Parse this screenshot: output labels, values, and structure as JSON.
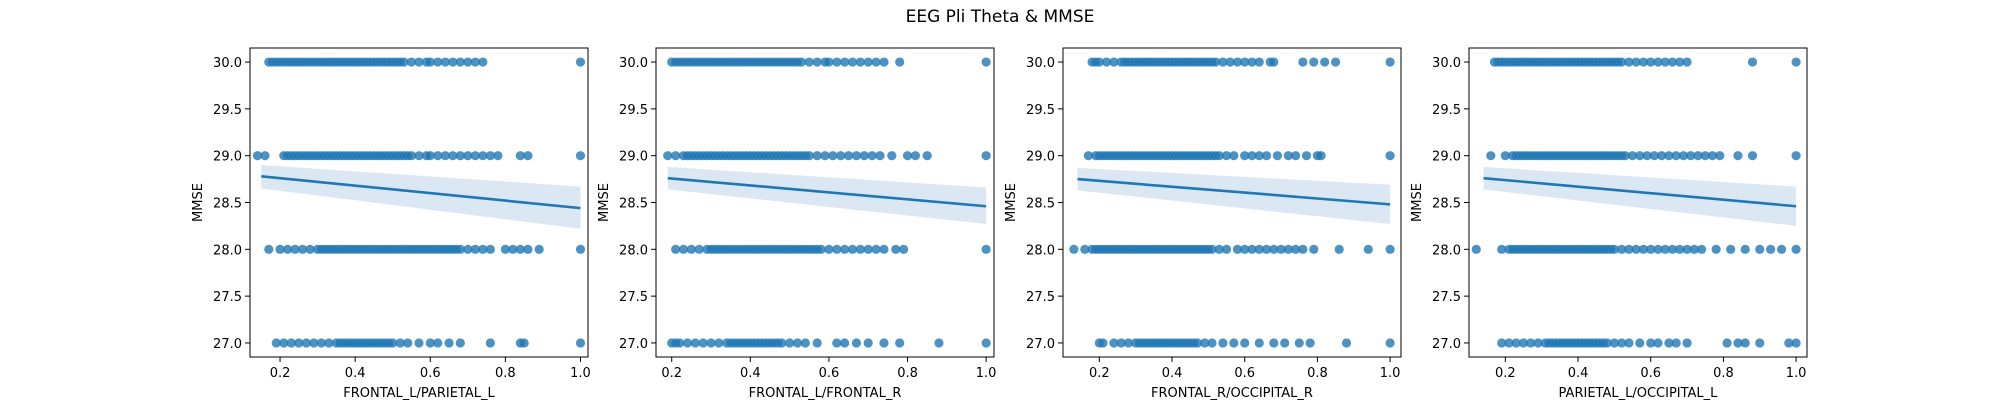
{
  "figure_title": "EEG Pli Theta & MMSE",
  "style": {
    "point_color": "#1f77b4",
    "line_color": "#1f77b4",
    "band_color": "#a6c5e2"
  },
  "chart_data": [
    {
      "type": "scatter",
      "title": "",
      "xlabel": "FRONTAL_L/PARIETAL_L",
      "ylabel": "MMSE",
      "xlim": [
        0.12,
        1.02
      ],
      "ylim": [
        26.85,
        30.15
      ],
      "xticks": [
        "0.2",
        "0.4",
        "0.6",
        "0.8",
        "1.0"
      ],
      "yticks": [
        "27.0",
        "27.5",
        "28.0",
        "28.5",
        "29.0",
        "29.5",
        "30.0"
      ],
      "grid": false,
      "regression": {
        "x": [
          0.15,
          1.0
        ],
        "y": [
          28.78,
          28.44
        ],
        "ci_low": [
          28.65,
          28.22
        ],
        "ci_high": [
          28.9,
          28.67
        ]
      },
      "points": [
        {
          "y": 30.0,
          "x": [
            0.17,
            0.18,
            0.19,
            0.2,
            0.21,
            0.22,
            0.23,
            0.24,
            0.25,
            0.26,
            0.27,
            0.28,
            0.29,
            0.3,
            0.31,
            0.32,
            0.33,
            0.34,
            0.35,
            0.36,
            0.37,
            0.38,
            0.39,
            0.4,
            0.41,
            0.42,
            0.43,
            0.44,
            0.45,
            0.46,
            0.47,
            0.48,
            0.49,
            0.5,
            0.51,
            0.52,
            0.53,
            0.55,
            0.57,
            0.59,
            0.6,
            0.62,
            0.64,
            0.66,
            0.68,
            0.7,
            0.72,
            0.74,
            1.0
          ]
        },
        {
          "y": 29.0,
          "x": [
            0.14,
            0.16,
            0.21,
            0.22,
            0.23,
            0.24,
            0.25,
            0.26,
            0.27,
            0.28,
            0.29,
            0.3,
            0.31,
            0.32,
            0.33,
            0.34,
            0.35,
            0.36,
            0.37,
            0.38,
            0.39,
            0.4,
            0.41,
            0.42,
            0.43,
            0.44,
            0.45,
            0.46,
            0.47,
            0.48,
            0.49,
            0.5,
            0.51,
            0.52,
            0.53,
            0.54,
            0.55,
            0.57,
            0.59,
            0.6,
            0.62,
            0.64,
            0.66,
            0.68,
            0.7,
            0.72,
            0.74,
            0.76,
            0.78,
            0.84,
            0.86,
            1.0
          ]
        },
        {
          "y": 28.0,
          "x": [
            0.17,
            0.2,
            0.22,
            0.24,
            0.26,
            0.28,
            0.3,
            0.31,
            0.32,
            0.33,
            0.34,
            0.35,
            0.36,
            0.37,
            0.38,
            0.39,
            0.4,
            0.41,
            0.42,
            0.43,
            0.44,
            0.45,
            0.46,
            0.47,
            0.48,
            0.49,
            0.5,
            0.51,
            0.52,
            0.53,
            0.54,
            0.55,
            0.56,
            0.57,
            0.58,
            0.59,
            0.6,
            0.61,
            0.62,
            0.63,
            0.64,
            0.65,
            0.66,
            0.67,
            0.68,
            0.7,
            0.72,
            0.74,
            0.76,
            0.8,
            0.82,
            0.84,
            0.86,
            0.89,
            1.0
          ]
        },
        {
          "y": 27.0,
          "x": [
            0.19,
            0.21,
            0.23,
            0.25,
            0.27,
            0.29,
            0.31,
            0.33,
            0.35,
            0.36,
            0.37,
            0.38,
            0.39,
            0.4,
            0.41,
            0.42,
            0.43,
            0.44,
            0.45,
            0.46,
            0.47,
            0.48,
            0.49,
            0.5,
            0.52,
            0.54,
            0.57,
            0.6,
            0.62,
            0.65,
            0.68,
            0.76,
            0.84,
            0.85,
            1.0
          ]
        }
      ]
    },
    {
      "type": "scatter",
      "title": "",
      "xlabel": "FRONTAL_L/FRONTAL_R",
      "ylabel": "MMSE",
      "xlim": [
        0.16,
        1.02
      ],
      "ylim": [
        26.85,
        30.15
      ],
      "xticks": [
        "0.2",
        "0.4",
        "0.6",
        "0.8",
        "1.0"
      ],
      "yticks": [
        "27.0",
        "27.5",
        "28.0",
        "28.5",
        "29.0",
        "29.5",
        "30.0"
      ],
      "grid": false,
      "regression": {
        "x": [
          0.19,
          1.0
        ],
        "y": [
          28.76,
          28.46
        ],
        "ci_low": [
          28.64,
          28.27
        ],
        "ci_high": [
          28.88,
          28.66
        ]
      },
      "points": [
        {
          "y": 30.0,
          "x": [
            0.2,
            0.21,
            0.22,
            0.23,
            0.24,
            0.25,
            0.26,
            0.27,
            0.28,
            0.29,
            0.3,
            0.31,
            0.32,
            0.33,
            0.34,
            0.35,
            0.36,
            0.37,
            0.38,
            0.39,
            0.4,
            0.41,
            0.42,
            0.43,
            0.44,
            0.45,
            0.46,
            0.47,
            0.48,
            0.49,
            0.5,
            0.51,
            0.52,
            0.53,
            0.55,
            0.57,
            0.59,
            0.6,
            0.62,
            0.64,
            0.66,
            0.68,
            0.7,
            0.72,
            0.74,
            0.78,
            1.0
          ]
        },
        {
          "y": 29.0,
          "x": [
            0.19,
            0.21,
            0.23,
            0.24,
            0.25,
            0.26,
            0.27,
            0.28,
            0.29,
            0.3,
            0.31,
            0.32,
            0.33,
            0.34,
            0.35,
            0.36,
            0.37,
            0.38,
            0.39,
            0.4,
            0.41,
            0.42,
            0.43,
            0.44,
            0.45,
            0.46,
            0.47,
            0.48,
            0.49,
            0.5,
            0.51,
            0.52,
            0.53,
            0.54,
            0.55,
            0.57,
            0.59,
            0.61,
            0.63,
            0.65,
            0.67,
            0.69,
            0.71,
            0.73,
            0.76,
            0.8,
            0.82,
            0.85,
            1.0
          ]
        },
        {
          "y": 28.0,
          "x": [
            0.21,
            0.23,
            0.25,
            0.27,
            0.29,
            0.3,
            0.31,
            0.32,
            0.33,
            0.34,
            0.35,
            0.36,
            0.37,
            0.38,
            0.39,
            0.4,
            0.41,
            0.42,
            0.43,
            0.44,
            0.45,
            0.46,
            0.47,
            0.48,
            0.49,
            0.5,
            0.51,
            0.52,
            0.53,
            0.54,
            0.55,
            0.56,
            0.57,
            0.58,
            0.6,
            0.62,
            0.64,
            0.66,
            0.68,
            0.7,
            0.72,
            0.74,
            0.77,
            0.79,
            1.0
          ]
        },
        {
          "y": 27.0,
          "x": [
            0.2,
            0.21,
            0.22,
            0.24,
            0.26,
            0.28,
            0.3,
            0.32,
            0.34,
            0.35,
            0.36,
            0.37,
            0.38,
            0.39,
            0.4,
            0.41,
            0.42,
            0.43,
            0.44,
            0.45,
            0.46,
            0.47,
            0.48,
            0.5,
            0.52,
            0.54,
            0.57,
            0.62,
            0.64,
            0.67,
            0.7,
            0.74,
            0.78,
            0.88,
            1.0
          ]
        }
      ]
    },
    {
      "type": "scatter",
      "title": "",
      "xlabel": "FRONTAL_R/OCCIPITAL_R",
      "ylabel": "MMSE",
      "xlim": [
        0.1,
        1.03
      ],
      "ylim": [
        26.85,
        30.15
      ],
      "xticks": [
        "0.2",
        "0.4",
        "0.6",
        "0.8",
        "1.0"
      ],
      "yticks": [
        "27.0",
        "27.5",
        "28.0",
        "28.5",
        "29.0",
        "29.5",
        "30.0"
      ],
      "grid": false,
      "regression": {
        "x": [
          0.14,
          1.0
        ],
        "y": [
          28.75,
          28.48
        ],
        "ci_low": [
          28.63,
          28.27
        ],
        "ci_high": [
          28.87,
          28.69
        ]
      },
      "points": [
        {
          "y": 30.0,
          "x": [
            0.18,
            0.19,
            0.2,
            0.22,
            0.24,
            0.26,
            0.27,
            0.28,
            0.29,
            0.3,
            0.31,
            0.32,
            0.33,
            0.34,
            0.35,
            0.36,
            0.37,
            0.38,
            0.39,
            0.4,
            0.41,
            0.42,
            0.43,
            0.44,
            0.45,
            0.46,
            0.47,
            0.48,
            0.49,
            0.5,
            0.51,
            0.52,
            0.54,
            0.56,
            0.58,
            0.6,
            0.62,
            0.64,
            0.67,
            0.68,
            0.76,
            0.79,
            0.82,
            0.85,
            1.0
          ]
        },
        {
          "y": 29.0,
          "x": [
            0.17,
            0.19,
            0.2,
            0.21,
            0.22,
            0.23,
            0.24,
            0.25,
            0.26,
            0.27,
            0.28,
            0.29,
            0.3,
            0.31,
            0.32,
            0.33,
            0.34,
            0.35,
            0.36,
            0.37,
            0.38,
            0.39,
            0.4,
            0.41,
            0.42,
            0.43,
            0.44,
            0.45,
            0.46,
            0.47,
            0.48,
            0.49,
            0.5,
            0.51,
            0.52,
            0.53,
            0.55,
            0.57,
            0.6,
            0.62,
            0.64,
            0.66,
            0.69,
            0.72,
            0.74,
            0.77,
            0.8,
            0.81,
            1.0
          ]
        },
        {
          "y": 28.0,
          "x": [
            0.13,
            0.16,
            0.18,
            0.19,
            0.2,
            0.21,
            0.22,
            0.23,
            0.24,
            0.25,
            0.26,
            0.27,
            0.28,
            0.29,
            0.3,
            0.31,
            0.32,
            0.33,
            0.34,
            0.35,
            0.36,
            0.37,
            0.38,
            0.39,
            0.4,
            0.41,
            0.42,
            0.43,
            0.44,
            0.45,
            0.46,
            0.47,
            0.48,
            0.49,
            0.5,
            0.51,
            0.53,
            0.55,
            0.58,
            0.6,
            0.62,
            0.64,
            0.66,
            0.68,
            0.7,
            0.72,
            0.74,
            0.76,
            0.79,
            0.86,
            0.94,
            1.0
          ]
        },
        {
          "y": 27.0,
          "x": [
            0.2,
            0.21,
            0.24,
            0.26,
            0.28,
            0.3,
            0.31,
            0.32,
            0.33,
            0.34,
            0.35,
            0.36,
            0.37,
            0.38,
            0.39,
            0.4,
            0.41,
            0.42,
            0.43,
            0.44,
            0.45,
            0.46,
            0.47,
            0.49,
            0.51,
            0.54,
            0.57,
            0.6,
            0.64,
            0.68,
            0.71,
            0.75,
            0.78,
            0.88,
            1.0
          ]
        }
      ]
    },
    {
      "type": "scatter",
      "title": "",
      "xlabel": "PARIETAL_L/OCCIPITAL_L",
      "ylabel": "MMSE",
      "xlim": [
        0.1,
        1.03
      ],
      "ylim": [
        26.85,
        30.15
      ],
      "xticks": [
        "0.2",
        "0.4",
        "0.6",
        "0.8",
        "1.0"
      ],
      "yticks": [
        "27.0",
        "27.5",
        "28.0",
        "28.5",
        "29.0",
        "29.5",
        "30.0"
      ],
      "grid": false,
      "regression": {
        "x": [
          0.14,
          1.0
        ],
        "y": [
          28.76,
          28.46
        ],
        "ci_low": [
          28.64,
          28.25
        ],
        "ci_high": [
          28.88,
          28.67
        ]
      },
      "points": [
        {
          "y": 30.0,
          "x": [
            0.17,
            0.18,
            0.19,
            0.2,
            0.21,
            0.22,
            0.23,
            0.24,
            0.25,
            0.26,
            0.27,
            0.28,
            0.29,
            0.3,
            0.31,
            0.32,
            0.33,
            0.34,
            0.35,
            0.36,
            0.37,
            0.38,
            0.39,
            0.4,
            0.41,
            0.42,
            0.43,
            0.44,
            0.45,
            0.46,
            0.47,
            0.48,
            0.49,
            0.5,
            0.51,
            0.52,
            0.54,
            0.56,
            0.58,
            0.6,
            0.62,
            0.64,
            0.66,
            0.68,
            0.7,
            0.88,
            1.0
          ]
        },
        {
          "y": 29.0,
          "x": [
            0.16,
            0.2,
            0.22,
            0.23,
            0.24,
            0.25,
            0.26,
            0.27,
            0.28,
            0.29,
            0.3,
            0.31,
            0.32,
            0.33,
            0.34,
            0.35,
            0.36,
            0.37,
            0.38,
            0.39,
            0.4,
            0.41,
            0.42,
            0.43,
            0.44,
            0.45,
            0.46,
            0.47,
            0.48,
            0.49,
            0.5,
            0.51,
            0.52,
            0.53,
            0.55,
            0.57,
            0.59,
            0.61,
            0.63,
            0.65,
            0.67,
            0.69,
            0.71,
            0.73,
            0.75,
            0.77,
            0.79,
            0.84,
            0.88,
            1.0
          ]
        },
        {
          "y": 28.0,
          "x": [
            0.12,
            0.19,
            0.21,
            0.22,
            0.23,
            0.24,
            0.25,
            0.26,
            0.27,
            0.28,
            0.29,
            0.3,
            0.31,
            0.32,
            0.33,
            0.34,
            0.35,
            0.36,
            0.37,
            0.38,
            0.39,
            0.4,
            0.41,
            0.42,
            0.43,
            0.44,
            0.45,
            0.46,
            0.47,
            0.48,
            0.49,
            0.5,
            0.52,
            0.54,
            0.56,
            0.58,
            0.6,
            0.62,
            0.64,
            0.66,
            0.68,
            0.7,
            0.72,
            0.74,
            0.78,
            0.82,
            0.86,
            0.9,
            0.93,
            0.96,
            1.0
          ]
        },
        {
          "y": 27.0,
          "x": [
            0.19,
            0.21,
            0.23,
            0.25,
            0.27,
            0.29,
            0.31,
            0.32,
            0.33,
            0.34,
            0.35,
            0.36,
            0.37,
            0.38,
            0.39,
            0.4,
            0.41,
            0.42,
            0.43,
            0.44,
            0.45,
            0.46,
            0.47,
            0.48,
            0.5,
            0.52,
            0.54,
            0.57,
            0.6,
            0.62,
            0.65,
            0.67,
            0.7,
            0.81,
            0.84,
            0.86,
            0.9,
            0.98,
            1.0
          ]
        }
      ]
    }
  ]
}
